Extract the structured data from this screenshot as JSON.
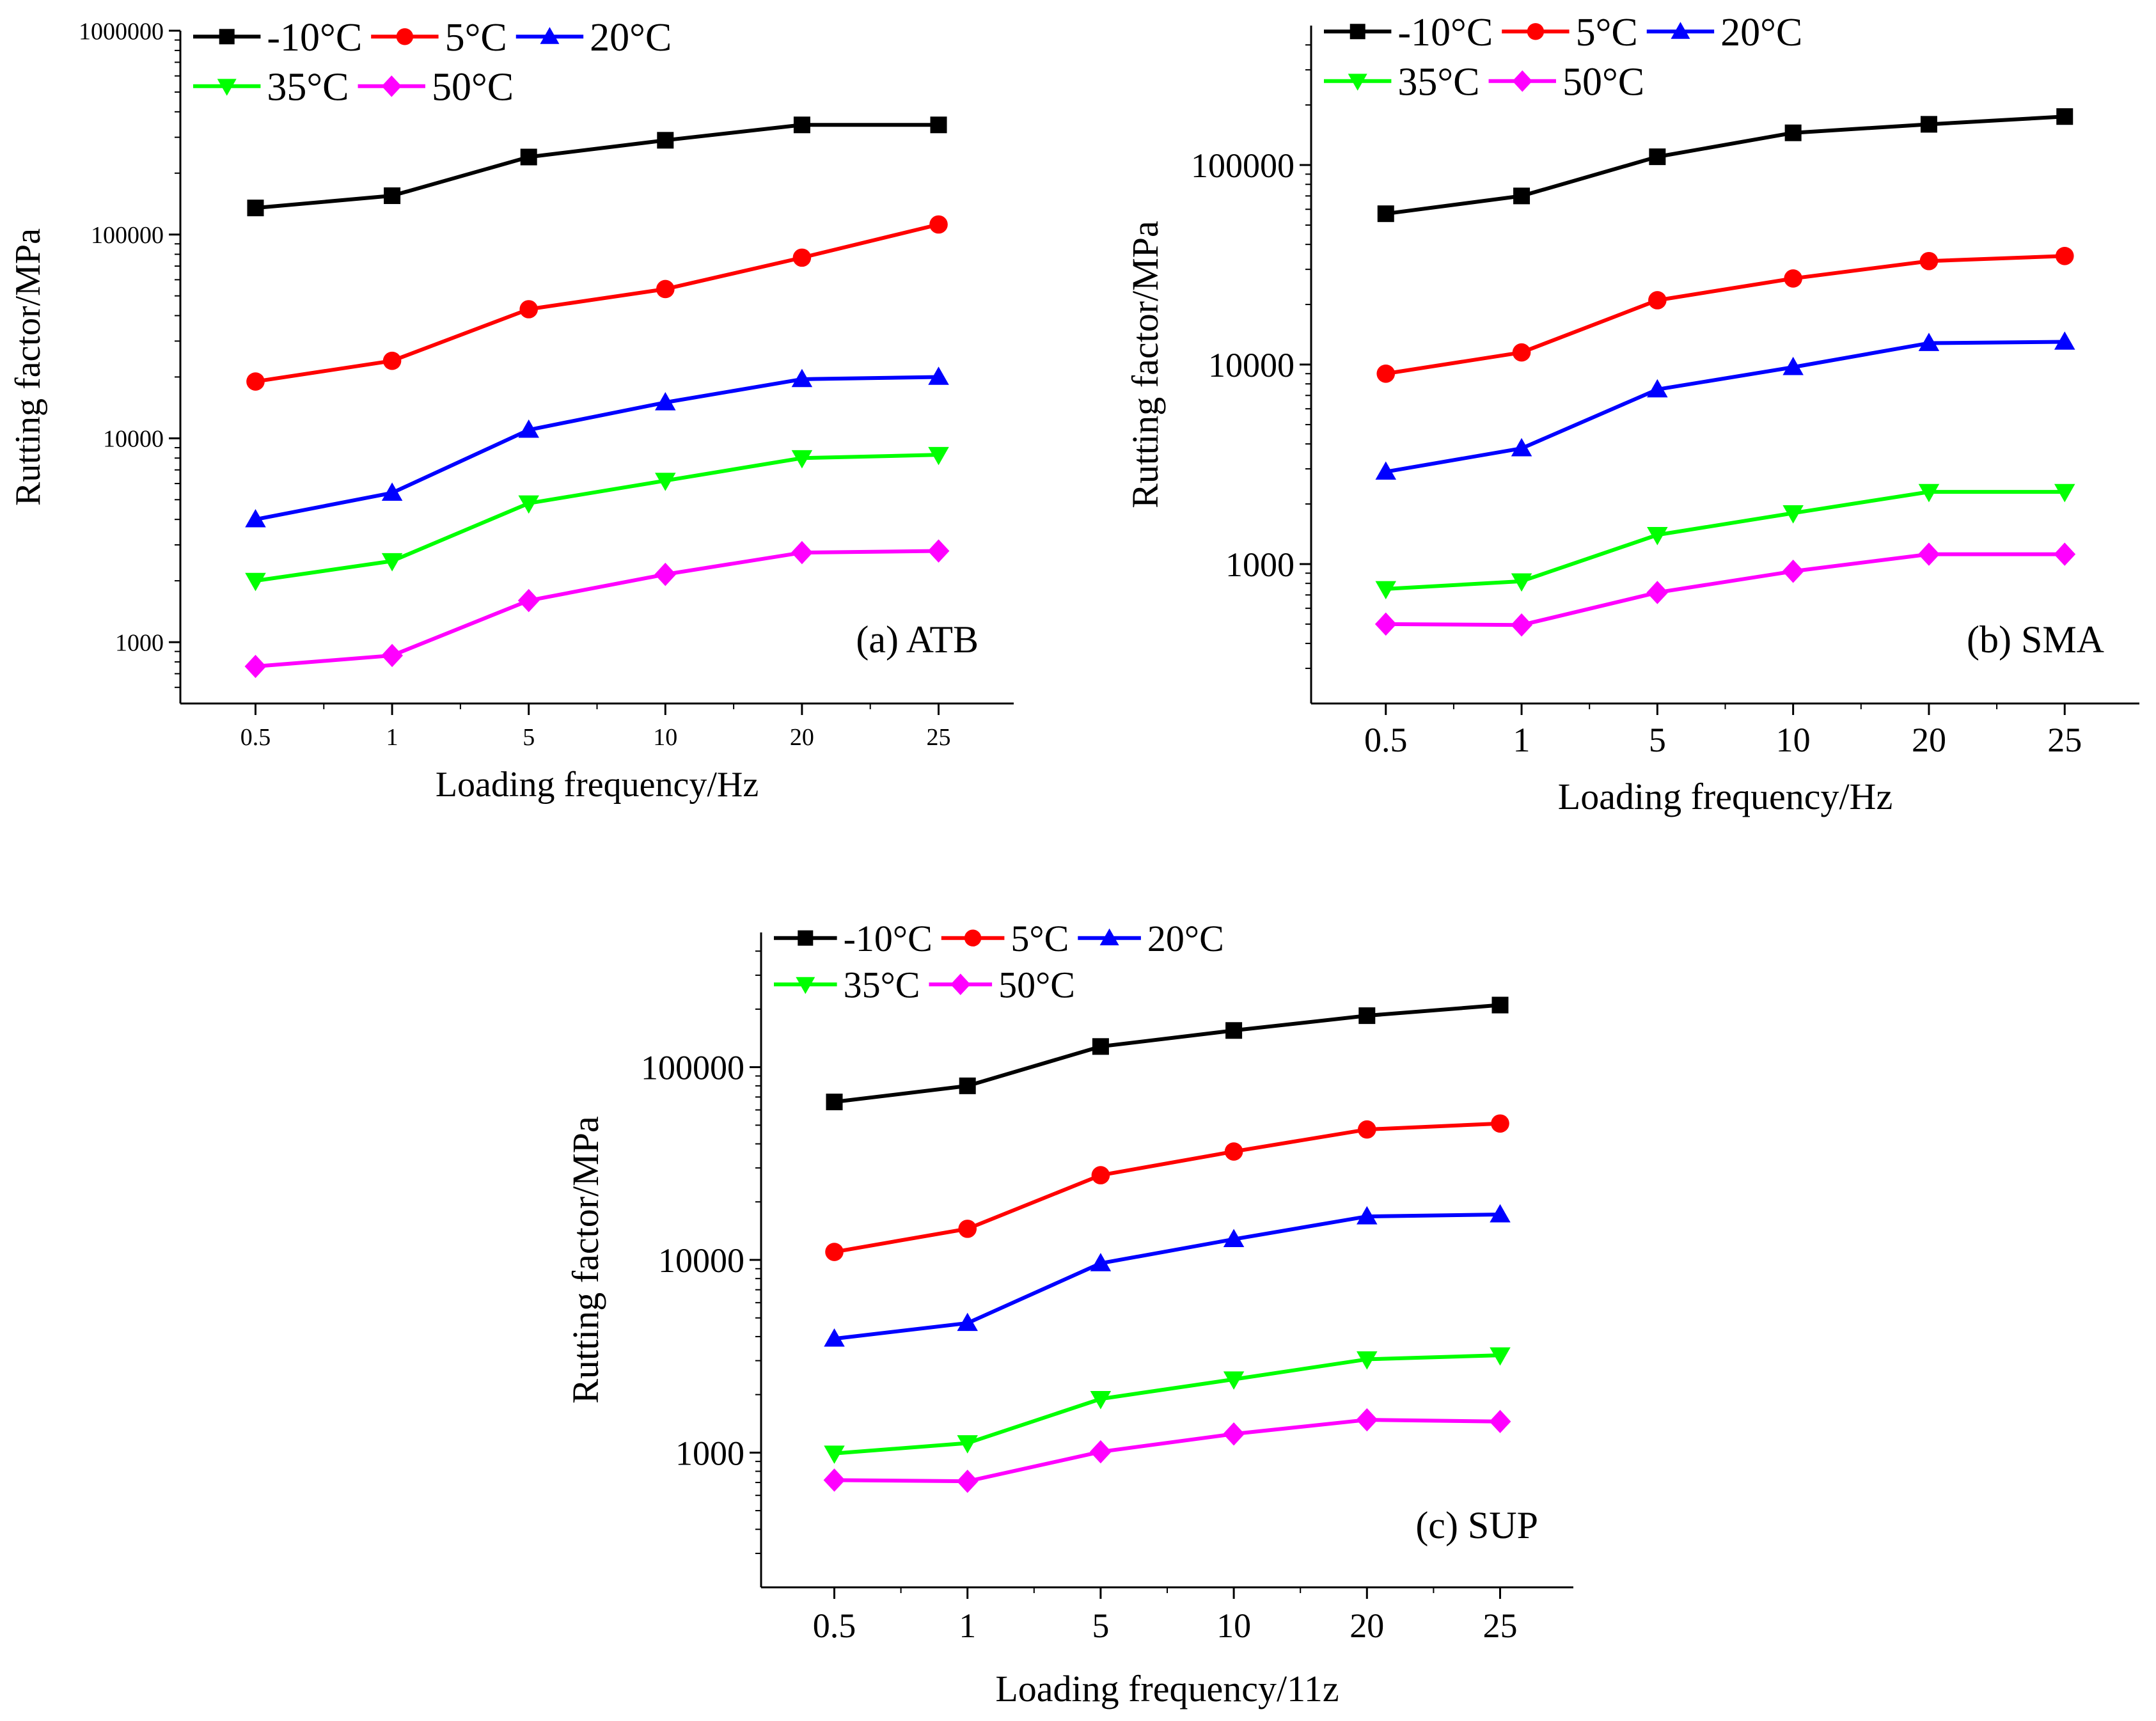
{
  "figure": {
    "background": "#ffffff"
  },
  "chart_data": [
    {
      "type": "line",
      "title": "(a) ATB",
      "xlabel": "Loading frequency/Hz",
      "ylabel": "Rutting factor/MPa",
      "yscale": "log",
      "ylim": [
        500,
        1000000
      ],
      "y_ticks": [
        1000,
        10000,
        100000,
        1000000
      ],
      "y_tick_labels": [
        "1000",
        "10000",
        "100000",
        "1000000"
      ],
      "categories": [
        "0.5",
        "1",
        "5",
        "10",
        "20",
        "25"
      ],
      "legend_position": "top-left",
      "series": [
        {
          "name": "-10°C",
          "color": "#000000",
          "marker": "square",
          "values": [
            135000,
            155000,
            240000,
            290000,
            345000,
            345000
          ]
        },
        {
          "name": "5°C",
          "color": "#ff0000",
          "marker": "circle",
          "values": [
            19000,
            24000,
            43000,
            54000,
            77000,
            112000
          ]
        },
        {
          "name": "20°C",
          "color": "#0000ff",
          "marker": "triangle-up",
          "values": [
            4000,
            5400,
            11000,
            15000,
            19500,
            20000
          ]
        },
        {
          "name": "35°C",
          "color": "#00ff00",
          "marker": "triangle-down",
          "values": [
            2000,
            2500,
            4800,
            6200,
            8000,
            8300
          ]
        },
        {
          "name": "50°C",
          "color": "#ff00ff",
          "marker": "diamond",
          "values": [
            760,
            860,
            1600,
            2150,
            2750,
            2800
          ]
        }
      ]
    },
    {
      "type": "line",
      "title": "(b) SMA",
      "xlabel": "Loading frequency/Hz",
      "ylabel": "Rutting factor/MPa",
      "yscale": "log",
      "ylim": [
        200,
        500000
      ],
      "y_ticks": [
        1000,
        10000,
        100000
      ],
      "y_tick_labels": [
        "1000",
        "10000",
        "100000"
      ],
      "categories": [
        "0.5",
        "1",
        "5",
        "10",
        "20",
        "25"
      ],
      "legend_position": "top-left",
      "series": [
        {
          "name": "-10°C",
          "color": "#000000",
          "marker": "square",
          "values": [
            57000,
            70000,
            110000,
            145000,
            160000,
            175000
          ]
        },
        {
          "name": "5°C",
          "color": "#ff0000",
          "marker": "circle",
          "values": [
            9000,
            11500,
            21000,
            27000,
            33000,
            35000
          ]
        },
        {
          "name": "20°C",
          "color": "#0000ff",
          "marker": "triangle-up",
          "values": [
            2900,
            3800,
            7500,
            9700,
            12800,
            13000
          ]
        },
        {
          "name": "35°C",
          "color": "#00ff00",
          "marker": "triangle-down",
          "values": [
            750,
            820,
            1400,
            1800,
            2300,
            2300
          ]
        },
        {
          "name": "50°C",
          "color": "#ff00ff",
          "marker": "diamond",
          "values": [
            500,
            495,
            720,
            920,
            1120,
            1120
          ]
        }
      ]
    },
    {
      "type": "line",
      "title": "(c) SUP",
      "xlabel": "Loading frequency/11z",
      "ylabel": "Rutting factor/MPa",
      "yscale": "log",
      "ylim": [
        200,
        500000
      ],
      "y_ticks": [
        1000,
        10000,
        100000
      ],
      "y_tick_labels": [
        "1000",
        "10000",
        "100000"
      ],
      "categories": [
        "0.5",
        "1",
        "5",
        "10",
        "20",
        "25"
      ],
      "legend_position": "top-left",
      "series": [
        {
          "name": "-10°C",
          "color": "#000000",
          "marker": "square",
          "values": [
            66000,
            80000,
            128000,
            155000,
            185000,
            210000
          ]
        },
        {
          "name": "5°C",
          "color": "#ff0000",
          "marker": "circle",
          "values": [
            11000,
            14500,
            27500,
            36500,
            47500,
            51000
          ]
        },
        {
          "name": "20°C",
          "color": "#0000ff",
          "marker": "triangle-up",
          "values": [
            3900,
            4700,
            9600,
            12800,
            16800,
            17200
          ]
        },
        {
          "name": "35°C",
          "color": "#00ff00",
          "marker": "triangle-down",
          "values": [
            990,
            1120,
            1900,
            2400,
            3050,
            3200
          ]
        },
        {
          "name": "50°C",
          "color": "#ff00ff",
          "marker": "diamond",
          "values": [
            720,
            710,
            1010,
            1250,
            1480,
            1450
          ]
        }
      ]
    }
  ]
}
